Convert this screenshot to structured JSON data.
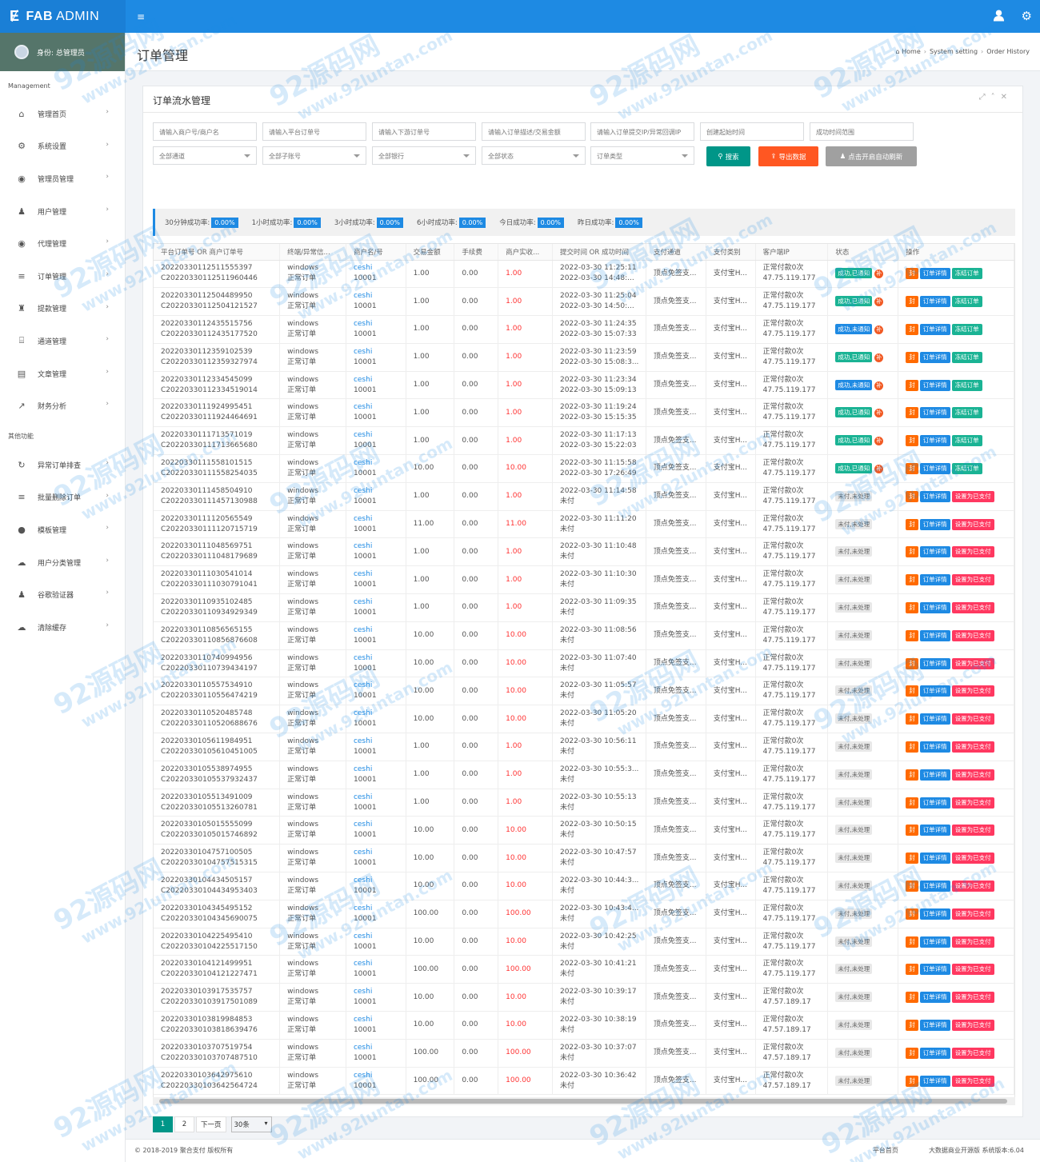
{
  "app": {
    "title_strong": "FAB",
    "title_rest": " ADMIN",
    "logo_icon": "fab-logo-icon",
    "user_icon": "user-icon",
    "settings_icon": "gear-icon"
  },
  "sidebar": {
    "user_label": "身份: 总管理员",
    "section_main": "Management",
    "section_other": "其他功能",
    "items": [
      {
        "label": "管理首页",
        "icon": "home-icon",
        "glyph": "⌂"
      },
      {
        "label": "系统设置",
        "icon": "cogs-icon",
        "glyph": "⚙"
      },
      {
        "label": "管理员管理",
        "icon": "user-circle-icon",
        "glyph": "◉"
      },
      {
        "label": "用户管理",
        "icon": "users-icon",
        "glyph": "♟"
      },
      {
        "label": "代理管理",
        "icon": "user-circle-icon",
        "glyph": "◉"
      },
      {
        "label": "订单管理",
        "icon": "list-icon",
        "glyph": "≡"
      },
      {
        "label": "提款管理",
        "icon": "flask-icon",
        "glyph": "♜"
      },
      {
        "label": "通道管理",
        "icon": "bank-icon",
        "glyph": "⌸"
      },
      {
        "label": "文章管理",
        "icon": "book-icon",
        "glyph": "▤"
      },
      {
        "label": "财务分析",
        "icon": "chart-line-icon",
        "glyph": "↗"
      }
    ],
    "other_items": [
      {
        "label": "异常订单排查",
        "icon": "refresh-icon",
        "glyph": "↻"
      },
      {
        "label": "批量删除订单",
        "icon": "list-icon",
        "glyph": "≡"
      },
      {
        "label": "模板管理",
        "icon": "apple-icon",
        "glyph": "●"
      },
      {
        "label": "用户分类管理",
        "icon": "wechat-icon",
        "glyph": "☁"
      },
      {
        "label": "谷歌验证器",
        "icon": "user-icon",
        "glyph": "♟"
      },
      {
        "label": "清除缓存",
        "icon": "cloud-icon",
        "glyph": "☁"
      }
    ]
  },
  "page": {
    "title": "订单管理",
    "breadcrumb": [
      "Home",
      "System setting",
      "Order History"
    ]
  },
  "panel": {
    "title": "订单流水管理"
  },
  "filters": {
    "row1": [
      "请输入商户号/商户名",
      "请输入平台订单号",
      "请输入下游订单号",
      "请输入订单描述/交易金额",
      "请输入订单提交IP/异常回调IP",
      "创建起始时间",
      "成功时间范围"
    ],
    "row2": [
      "全部通道",
      "全部子账号",
      "全部银行",
      "全部状态",
      "订单类型"
    ],
    "search": "搜索",
    "export": "导出数据",
    "refresh": "点击开启自动刷新"
  },
  "stats": [
    {
      "label": "30分钟成功率:",
      "value": "0.00%"
    },
    {
      "label": "1小时成功率:",
      "value": "0.00%"
    },
    {
      "label": "3小时成功率:",
      "value": "0.00%"
    },
    {
      "label": "6小时成功率:",
      "value": "0.00%"
    },
    {
      "label": "今日成功率:",
      "value": "0.00%"
    },
    {
      "label": "昨日成功率:",
      "value": "0.00%"
    }
  ],
  "table": {
    "columns": [
      "平台订单号 OR 商户订单号",
      "终端/异常信...",
      "商户名/号",
      "交易金额",
      "手续费",
      "商户实收...",
      "提交时间 OR 成功时间",
      "支付通道",
      "支付类别",
      "客户端IP",
      "状态",
      "操作"
    ],
    "rows": [
      {
        "order": "20220330112511555397",
        "morder": "C20220330112511960446",
        "amount": "1.00",
        "received": "1.00",
        "t1": "2022-03-30 11:25:11",
        "t2": "2022-03-30 14:48:...",
        "ip": "47.75.119.177",
        "status": "成功,已通知",
        "state": "ok"
      },
      {
        "order": "20220330112504489950",
        "morder": "C20220330112504121527",
        "amount": "1.00",
        "received": "1.00",
        "t1": "2022-03-30 11:25:04",
        "t2": "2022-03-30 14:50:...",
        "ip": "47.75.119.177",
        "status": "成功,已通知",
        "state": "ok"
      },
      {
        "order": "20220330112435515756",
        "morder": "C20220330112435177520",
        "amount": "1.00",
        "received": "1.00",
        "t1": "2022-03-30 11:24:35",
        "t2": "2022-03-30 15:07:33",
        "ip": "47.75.119.177",
        "status": "成功,未通知",
        "state": "warn"
      },
      {
        "order": "20220330112359102539",
        "morder": "C20220330112359327974",
        "amount": "1.00",
        "received": "1.00",
        "t1": "2022-03-30 11:23:59",
        "t2": "2022-03-30 15:08:3...",
        "ip": "47.75.119.177",
        "status": "成功,已通知",
        "state": "ok"
      },
      {
        "order": "20220330112334545099",
        "morder": "C20220330112334519014",
        "amount": "1.00",
        "received": "1.00",
        "t1": "2022-03-30 11:23:34",
        "t2": "2022-03-30 15:09:13",
        "ip": "47.75.119.177",
        "status": "成功,未通知",
        "state": "warn"
      },
      {
        "order": "20220330111924995451",
        "morder": "C20220330111924464691",
        "amount": "1.00",
        "received": "1.00",
        "t1": "2022-03-30 11:19:24",
        "t2": "2022-03-30 15:15:35",
        "ip": "47.75.119.177",
        "status": "成功,已通知",
        "state": "ok"
      },
      {
        "order": "20220330111713571019",
        "morder": "C20220330111713665680",
        "amount": "1.00",
        "received": "1.00",
        "t1": "2022-03-30 11:17:13",
        "t2": "2022-03-30 15:22:03",
        "ip": "47.75.119.177",
        "status": "成功,已通知",
        "state": "ok"
      },
      {
        "order": "20220330111558101515",
        "morder": "C20220330111558254035",
        "amount": "10.00",
        "received": "10.00",
        "t1": "2022-03-30 11:15:58",
        "t2": "2022-03-30 17:26:49",
        "ip": "47.75.119.177",
        "status": "成功,已通知",
        "state": "ok"
      },
      {
        "order": "20220330111458504910",
        "morder": "C20220330111457130988",
        "amount": "1.00",
        "received": "1.00",
        "t1": "2022-03-30 11:14:58",
        "t2": "未付",
        "ip": "47.75.119.177",
        "status": "未付,未处理",
        "state": "no"
      },
      {
        "order": "20220330111120565549",
        "morder": "C20220330111120715719",
        "amount": "11.00",
        "received": "11.00",
        "t1": "2022-03-30 11:11:20",
        "t2": "未付",
        "ip": "47.75.119.177",
        "status": "未付,未处理",
        "state": "no"
      },
      {
        "order": "20220330111048569751",
        "morder": "C20220330111048179689",
        "amount": "1.00",
        "received": "1.00",
        "t1": "2022-03-30 11:10:48",
        "t2": "未付",
        "ip": "47.75.119.177",
        "status": "未付,未处理",
        "state": "no"
      },
      {
        "order": "20220330111030541014",
        "morder": "C20220330111030791041",
        "amount": "1.00",
        "received": "1.00",
        "t1": "2022-03-30 11:10:30",
        "t2": "未付",
        "ip": "47.75.119.177",
        "status": "未付,未处理",
        "state": "no"
      },
      {
        "order": "20220330110935102485",
        "morder": "C20220330110934929349",
        "amount": "1.00",
        "received": "1.00",
        "t1": "2022-03-30 11:09:35",
        "t2": "未付",
        "ip": "47.75.119.177",
        "status": "未付,未处理",
        "state": "no"
      },
      {
        "order": "20220330110856565155",
        "morder": "C20220330110856876608",
        "amount": "10.00",
        "received": "10.00",
        "t1": "2022-03-30 11:08:56",
        "t2": "未付",
        "ip": "47.75.119.177",
        "status": "未付,未处理",
        "state": "no"
      },
      {
        "order": "20220330110740994956",
        "morder": "C20220330110739434197",
        "amount": "10.00",
        "received": "10.00",
        "t1": "2022-03-30 11:07:40",
        "t2": "未付",
        "ip": "47.75.119.177",
        "status": "未付,未处理",
        "state": "no"
      },
      {
        "order": "20220330110557534910",
        "morder": "C20220330110556474219",
        "amount": "10.00",
        "received": "10.00",
        "t1": "2022-03-30 11:05:57",
        "t2": "未付",
        "ip": "47.75.119.177",
        "status": "未付,未处理",
        "state": "no"
      },
      {
        "order": "20220330110520485748",
        "morder": "C20220330110520688676",
        "amount": "10.00",
        "received": "10.00",
        "t1": "2022-03-30 11:05:20",
        "t2": "未付",
        "ip": "47.75.119.177",
        "status": "未付,未处理",
        "state": "no"
      },
      {
        "order": "20220330105611984951",
        "morder": "C20220330105610451005",
        "amount": "1.00",
        "received": "1.00",
        "t1": "2022-03-30 10:56:11",
        "t2": "未付",
        "ip": "47.75.119.177",
        "status": "未付,未处理",
        "state": "no"
      },
      {
        "order": "20220330105538974955",
        "morder": "C20220330105537932437",
        "amount": "1.00",
        "received": "1.00",
        "t1": "2022-03-30 10:55:3...",
        "t2": "未付",
        "ip": "47.75.119.177",
        "status": "未付,未处理",
        "state": "no"
      },
      {
        "order": "20220330105513491009",
        "morder": "C20220330105513260781",
        "amount": "1.00",
        "received": "1.00",
        "t1": "2022-03-30 10:55:13",
        "t2": "未付",
        "ip": "47.75.119.177",
        "status": "未付,未处理",
        "state": "no"
      },
      {
        "order": "20220330105015555099",
        "morder": "C20220330105015746892",
        "amount": "10.00",
        "received": "10.00",
        "t1": "2022-03-30 10:50:15",
        "t2": "未付",
        "ip": "47.75.119.177",
        "status": "未付,未处理",
        "state": "no"
      },
      {
        "order": "20220330104757100505",
        "morder": "C20220330104757515315",
        "amount": "10.00",
        "received": "10.00",
        "t1": "2022-03-30 10:47:57",
        "t2": "未付",
        "ip": "47.75.119.177",
        "status": "未付,未处理",
        "state": "no"
      },
      {
        "order": "20220330104434505157",
        "morder": "C20220330104434953403",
        "amount": "10.00",
        "received": "10.00",
        "t1": "2022-03-30 10:44:3...",
        "t2": "未付",
        "ip": "47.75.119.177",
        "status": "未付,未处理",
        "state": "no"
      },
      {
        "order": "20220330104345495152",
        "morder": "C20220330104345690075",
        "amount": "100.00",
        "received": "100.00",
        "t1": "2022-03-30 10:43:4...",
        "t2": "未付",
        "ip": "47.75.119.177",
        "status": "未付,未处理",
        "state": "no"
      },
      {
        "order": "20220330104225495410",
        "morder": "C20220330104225517150",
        "amount": "10.00",
        "received": "10.00",
        "t1": "2022-03-30 10:42:25",
        "t2": "未付",
        "ip": "47.75.119.177",
        "status": "未付,未处理",
        "state": "no"
      },
      {
        "order": "20220330104121499951",
        "morder": "C20220330104121227471",
        "amount": "100.00",
        "received": "100.00",
        "t1": "2022-03-30 10:41:21",
        "t2": "未付",
        "ip": "47.75.119.177",
        "status": "未付,未处理",
        "state": "no"
      },
      {
        "order": "20220330103917535757",
        "morder": "C20220330103917501089",
        "amount": "10.00",
        "received": "10.00",
        "t1": "2022-03-30 10:39:17",
        "t2": "未付",
        "ip": "47.57.189.17",
        "status": "未付,未处理",
        "state": "no"
      },
      {
        "order": "20220330103819984853",
        "morder": "C20220330103818639476",
        "amount": "10.00",
        "received": "10.00",
        "t1": "2022-03-30 10:38:19",
        "t2": "未付",
        "ip": "47.57.189.17",
        "status": "未付,未处理",
        "state": "no"
      },
      {
        "order": "20220330103707519754",
        "morder": "C20220330103707487510",
        "amount": "100.00",
        "received": "100.00",
        "t1": "2022-03-30 10:37:07",
        "t2": "未付",
        "ip": "47.57.189.17",
        "status": "未付,未处理",
        "state": "no"
      },
      {
        "order": "20220330103642975610",
        "morder": "C20220330103642564724",
        "amount": "100.00",
        "received": "100.00",
        "t1": "2022-03-30 10:36:42",
        "t2": "未付",
        "ip": "47.57.189.17",
        "status": "未付,未处理",
        "state": "no"
      }
    ],
    "common": {
      "terminal": "windows",
      "terminal2": "正常订单",
      "merchant": "ceshi",
      "merchant_no": "10001",
      "fee": "0.00",
      "channel": "顶点免签支...",
      "paytype": "支付宝H...",
      "ip_prefix": "正常付款0次",
      "notify_badge": "补",
      "act_seal": "封",
      "act_detail": "订单详情",
      "act_freeze": "冻结订单",
      "act_paid": "设置为已支付"
    }
  },
  "pagination": {
    "pages": [
      "1",
      "2"
    ],
    "next": "下一页",
    "per_page": "30条"
  },
  "footer": {
    "copyright": "© 2018-2019 聚合支付 版权所有",
    "home": "平台首页",
    "version": "大数据商业开源版 系统版本:6.04"
  },
  "watermark": {
    "big": "92源码网",
    "url": "www.92luntan.com"
  },
  "colors": {
    "primary": "#1e8ae3",
    "success": "#1ab394",
    "danger": "#ff3860",
    "warning": "#ff6a00",
    "teal": "#009688"
  }
}
